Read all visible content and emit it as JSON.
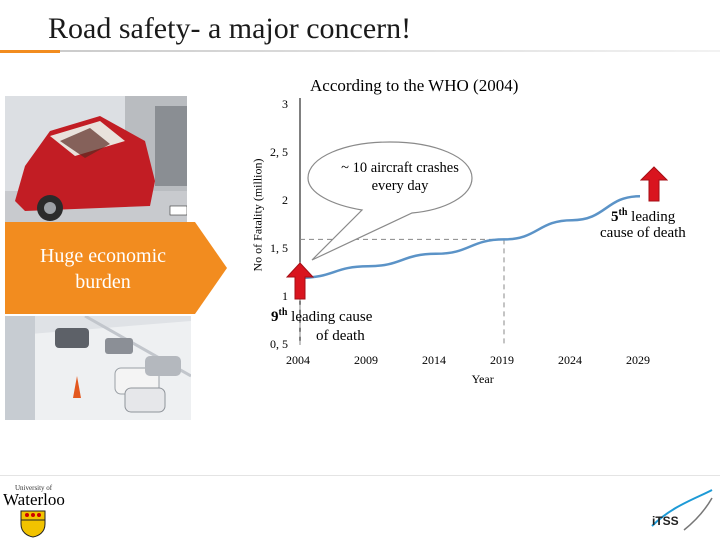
{
  "slide": {
    "title": "Road safety- a major concern!",
    "subtitle": "According to  the WHO (2004)",
    "callout": "Huge economic burden",
    "bubble": "~ 10 aircraft crashes every day",
    "annotation_start": {
      "main": "9",
      "sup": "th",
      "rest": " leading cause",
      "line2": "of death"
    },
    "annotation_end": {
      "main": "5",
      "sup": "th",
      "rest": " leading",
      "line2": "cause of death"
    },
    "logo_left": {
      "small": "University of",
      "name": "Waterloo"
    },
    "logo_right": "iTSS"
  },
  "chart_data": {
    "type": "line",
    "xlabel": "Year",
    "ylabel": "No of Fatality (million)",
    "x_ticks": [
      "2004",
      "2009",
      "2014",
      "2019",
      "2024",
      "2029"
    ],
    "y_ticks": [
      "0, 5",
      "1",
      "1, 5",
      "2",
      "2, 5",
      "3"
    ],
    "xlim": [
      2004,
      2029
    ],
    "ylim": [
      0.5,
      3
    ],
    "series": [
      {
        "x": [
          2004,
          2009,
          2014,
          2019,
          2024,
          2029
        ],
        "y": [
          1.2,
          1.32,
          1.45,
          1.6,
          1.8,
          2.05
        ]
      }
    ],
    "reference_lines": [
      {
        "x": 2004,
        "y": 1.2
      },
      {
        "x": 2019,
        "y": 1.6
      }
    ],
    "colors": {
      "line": "#5b93c7",
      "arrow": "#d9141e",
      "callout": "#f28c1f"
    }
  }
}
